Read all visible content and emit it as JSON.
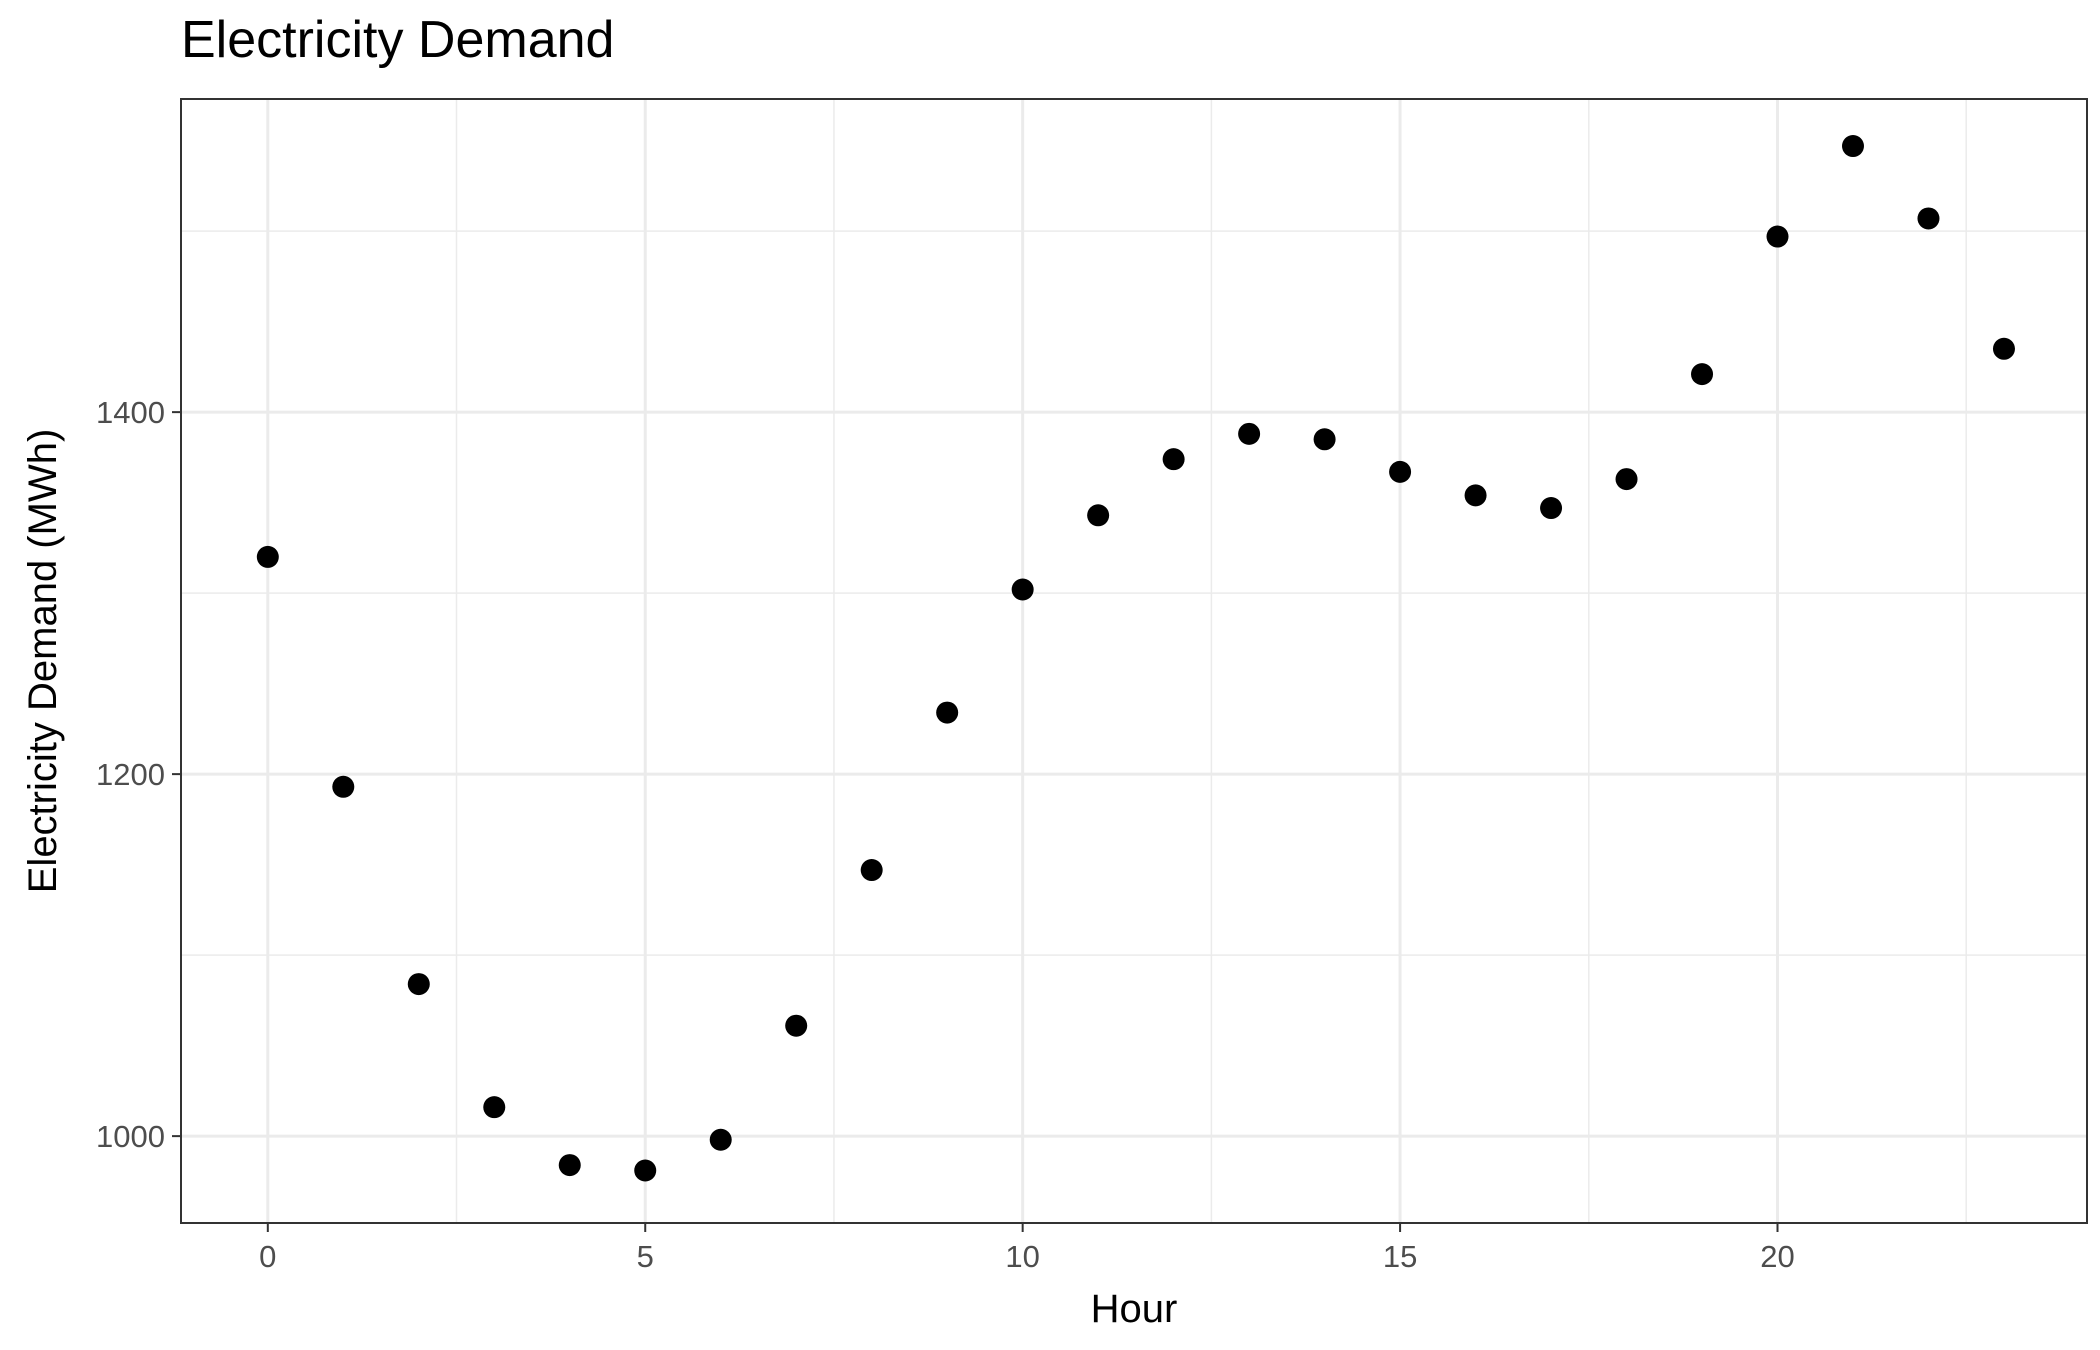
{
  "chart_data": {
    "type": "scatter",
    "title": "Electricity Demand",
    "xlabel": "Hour",
    "ylabel": "Electricity Demand (MWh)",
    "xlim": [
      -1.15,
      24.1
    ],
    "ylim": [
      952,
      1573
    ],
    "x_ticks": [
      0,
      5,
      10,
      15,
      20
    ],
    "y_ticks": [
      1000,
      1200,
      1400
    ],
    "grid": true,
    "point_color": "#000000",
    "x": [
      0,
      1,
      2,
      3,
      4,
      5,
      6,
      7,
      8,
      9,
      10,
      11,
      12,
      13,
      14,
      15,
      16,
      17,
      18,
      19,
      20,
      21,
      22,
      23
    ],
    "y": [
      1320,
      1193,
      1084,
      1016,
      984,
      981,
      998,
      1061,
      1147,
      1234,
      1302,
      1343,
      1374,
      1388,
      1385,
      1367,
      1354,
      1347,
      1363,
      1421,
      1497,
      1547,
      1507,
      1435
    ]
  }
}
